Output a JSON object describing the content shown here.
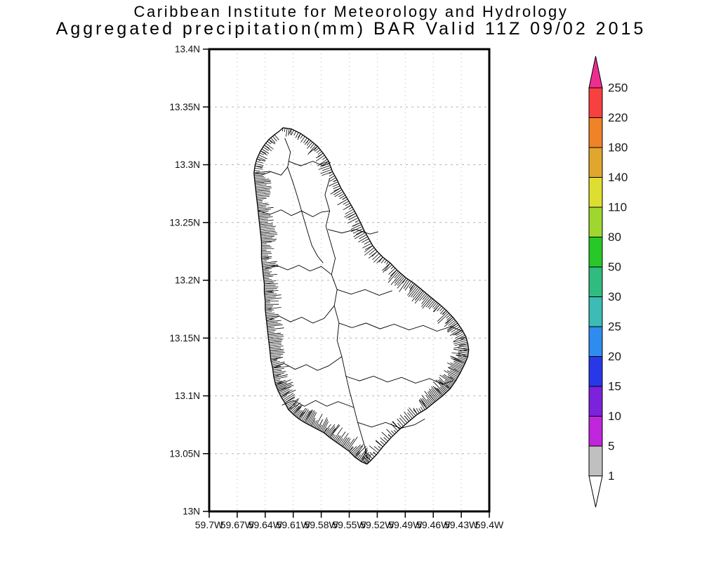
{
  "header": {
    "line1": "Caribbean Institute for Meteorology and Hydrology",
    "line2": "Aggregated precipitation(mm) BAR Valid 11Z 09/02 2015"
  },
  "axes": {
    "lat_range": [
      13.0,
      13.4
    ],
    "lon_range": [
      -59.7,
      -59.4
    ],
    "lat_ticks": [
      {
        "label": "13.4N",
        "lat": 13.4
      },
      {
        "label": "13.35N",
        "lat": 13.35
      },
      {
        "label": "13.3N",
        "lat": 13.3
      },
      {
        "label": "13.25N",
        "lat": 13.25
      },
      {
        "label": "13.2N",
        "lat": 13.2
      },
      {
        "label": "13.15N",
        "lat": 13.15
      },
      {
        "label": "13.1N",
        "lat": 13.1
      },
      {
        "label": "13.05N",
        "lat": 13.05
      },
      {
        "label": "13N",
        "lat": 13.0
      }
    ],
    "lon_ticks": [
      {
        "label": "59.7W",
        "lon": -59.7
      },
      {
        "label": "59.67W",
        "lon": -59.67
      },
      {
        "label": "59.64W",
        "lon": -59.64
      },
      {
        "label": "59.61W",
        "lon": -59.61
      },
      {
        "label": "59.58W",
        "lon": -59.58
      },
      {
        "label": "59.55W",
        "lon": -59.55
      },
      {
        "label": "59.52W",
        "lon": -59.52
      },
      {
        "label": "59.49W",
        "lon": -59.49
      },
      {
        "label": "59.46W",
        "lon": -59.46
      },
      {
        "label": "59.43W",
        "lon": -59.43
      },
      {
        "label": "59.4W",
        "lon": -59.4
      }
    ]
  },
  "colorbar": {
    "unit": "mm",
    "levels": [
      "250",
      "220",
      "180",
      "140",
      "110",
      "80",
      "50",
      "30",
      "25",
      "20",
      "15",
      "10",
      "5",
      "1"
    ],
    "band_colors": [
      "#ee2e8e",
      "#f94040",
      "#f08228",
      "#e0a62e",
      "#dede30",
      "#a0d630",
      "#28c828",
      "#30bc7e",
      "#3cbcb4",
      "#2e8cee",
      "#2838e8",
      "#7c22dc",
      "#c026dc",
      "#c0c0c0",
      "#ffffff"
    ]
  },
  "map": {
    "region": "Barbados",
    "coastline": [
      [
        -59.621,
        13.332
      ],
      [
        -59.612,
        13.331
      ],
      [
        -59.602,
        13.327
      ],
      [
        -59.593,
        13.322
      ],
      [
        -59.584,
        13.316
      ],
      [
        -59.578,
        13.31
      ],
      [
        -59.572,
        13.303
      ],
      [
        -59.568,
        13.294
      ],
      [
        -59.563,
        13.287
      ],
      [
        -59.559,
        13.28
      ],
      [
        -59.553,
        13.272
      ],
      [
        -59.548,
        13.265
      ],
      [
        -59.543,
        13.258
      ],
      [
        -59.538,
        13.25
      ],
      [
        -59.534,
        13.243
      ],
      [
        -59.529,
        13.236
      ],
      [
        -59.525,
        13.23
      ],
      [
        -59.52,
        13.225
      ],
      [
        -59.514,
        13.22
      ],
      [
        -59.506,
        13.215
      ],
      [
        -59.499,
        13.209
      ],
      [
        -59.489,
        13.202
      ],
      [
        -59.48,
        13.197
      ],
      [
        -59.471,
        13.191
      ],
      [
        -59.462,
        13.185
      ],
      [
        -59.453,
        13.179
      ],
      [
        -59.446,
        13.174
      ],
      [
        -59.439,
        13.168
      ],
      [
        -59.434,
        13.163
      ],
      [
        -59.429,
        13.157
      ],
      [
        -59.425,
        13.151
      ],
      [
        -59.423,
        13.145
      ],
      [
        -59.422,
        13.14
      ],
      [
        -59.423,
        13.134
      ],
      [
        -59.426,
        13.128
      ],
      [
        -59.431,
        13.12
      ],
      [
        -59.436,
        13.113
      ],
      [
        -59.442,
        13.106
      ],
      [
        -59.45,
        13.1
      ],
      [
        -59.458,
        13.095
      ],
      [
        -59.467,
        13.089
      ],
      [
        -59.477,
        13.084
      ],
      [
        -59.486,
        13.078
      ],
      [
        -59.496,
        13.071
      ],
      [
        -59.505,
        13.064
      ],
      [
        -59.514,
        13.056
      ],
      [
        -59.521,
        13.049
      ],
      [
        -59.527,
        13.044
      ],
      [
        -59.531,
        13.041
      ],
      [
        -59.537,
        13.043
      ],
      [
        -59.544,
        13.047
      ],
      [
        -59.55,
        13.052
      ],
      [
        -59.557,
        13.056
      ],
      [
        -59.564,
        13.06
      ],
      [
        -59.571,
        13.064
      ],
      [
        -59.577,
        13.068
      ],
      [
        -59.584,
        13.071
      ],
      [
        -59.591,
        13.074
      ],
      [
        -59.598,
        13.077
      ],
      [
        -59.604,
        13.08
      ],
      [
        -59.61,
        13.084
      ],
      [
        -59.615,
        13.088
      ],
      [
        -59.619,
        13.094
      ],
      [
        -59.623,
        13.099
      ],
      [
        -59.626,
        13.104
      ],
      [
        -59.629,
        13.11
      ],
      [
        -59.631,
        13.117
      ],
      [
        -59.632,
        13.124
      ],
      [
        -59.634,
        13.131
      ],
      [
        -59.635,
        13.139
      ],
      [
        -59.636,
        13.146
      ],
      [
        -59.637,
        13.153
      ],
      [
        -59.638,
        13.16
      ],
      [
        -59.639,
        13.168
      ],
      [
        -59.64,
        13.175
      ],
      [
        -59.64,
        13.182
      ],
      [
        -59.641,
        13.19
      ],
      [
        -59.641,
        13.197
      ],
      [
        -59.642,
        13.204
      ],
      [
        -59.643,
        13.212
      ],
      [
        -59.644,
        13.219
      ],
      [
        -59.644,
        13.226
      ],
      [
        -59.644,
        13.233
      ],
      [
        -59.645,
        13.241
      ],
      [
        -59.646,
        13.248
      ],
      [
        -59.647,
        13.255
      ],
      [
        -59.648,
        13.263
      ],
      [
        -59.649,
        13.27
      ],
      [
        -59.65,
        13.277
      ],
      [
        -59.651,
        13.284
      ],
      [
        -59.652,
        13.293
      ],
      [
        -59.651,
        13.299
      ],
      [
        -59.649,
        13.305
      ],
      [
        -59.645,
        13.312
      ],
      [
        -59.641,
        13.317
      ],
      [
        -59.636,
        13.322
      ],
      [
        -59.63,
        13.326
      ],
      [
        -59.625,
        13.329
      ],
      [
        -59.621,
        13.332
      ]
    ],
    "watershed_lines": [
      [
        [
          -59.571,
          13.288
        ],
        [
          -59.576,
          13.274
        ],
        [
          -59.571,
          13.26
        ],
        [
          -59.575,
          13.247
        ],
        [
          -59.57,
          13.233
        ],
        [
          -59.565,
          13.219
        ],
        [
          -59.569,
          13.205
        ],
        [
          -59.563,
          13.192
        ],
        [
          -59.566,
          13.178
        ],
        [
          -59.561,
          13.163
        ],
        [
          -59.563,
          13.148
        ],
        [
          -59.558,
          13.134
        ],
        [
          -59.554,
          13.119
        ],
        [
          -59.55,
          13.105
        ],
        [
          -59.545,
          13.09
        ],
        [
          -59.541,
          13.077
        ],
        [
          -59.537,
          13.066
        ],
        [
          -59.533,
          13.055
        ],
        [
          -59.531,
          13.046
        ]
      ],
      [
        [
          -59.647,
          13.26
        ],
        [
          -59.635,
          13.257
        ],
        [
          -59.623,
          13.261
        ],
        [
          -59.612,
          13.256
        ],
        [
          -59.601,
          13.26
        ],
        [
          -59.589,
          13.255
        ],
        [
          -59.58,
          13.259
        ],
        [
          -59.571,
          13.26
        ]
      ],
      [
        [
          -59.619,
          13.323
        ],
        [
          -59.613,
          13.311
        ],
        [
          -59.616,
          13.298
        ],
        [
          -59.61,
          13.284
        ],
        [
          -59.605,
          13.271
        ],
        [
          -59.6,
          13.257
        ],
        [
          -59.595,
          13.243
        ],
        [
          -59.59,
          13.23
        ],
        [
          -59.584,
          13.221
        ],
        [
          -59.578,
          13.215
        ]
      ],
      [
        [
          -59.64,
          13.21
        ],
        [
          -59.628,
          13.213
        ],
        [
          -59.616,
          13.209
        ],
        [
          -59.604,
          13.213
        ],
        [
          -59.592,
          13.208
        ],
        [
          -59.58,
          13.212
        ],
        [
          -59.569,
          13.205
        ]
      ],
      [
        [
          -59.638,
          13.165
        ],
        [
          -59.625,
          13.169
        ],
        [
          -59.613,
          13.164
        ],
        [
          -59.601,
          13.168
        ],
        [
          -59.589,
          13.163
        ],
        [
          -59.577,
          13.167
        ],
        [
          -59.566,
          13.178
        ]
      ],
      [
        [
          -59.632,
          13.124
        ],
        [
          -59.62,
          13.128
        ],
        [
          -59.608,
          13.123
        ],
        [
          -59.596,
          13.127
        ],
        [
          -59.584,
          13.122
        ],
        [
          -59.572,
          13.126
        ],
        [
          -59.558,
          13.134
        ]
      ],
      [
        [
          -59.622,
          13.092
        ],
        [
          -59.61,
          13.096
        ],
        [
          -59.598,
          13.091
        ],
        [
          -59.586,
          13.096
        ],
        [
          -59.574,
          13.091
        ],
        [
          -59.562,
          13.095
        ],
        [
          -59.545,
          13.09
        ]
      ],
      [
        [
          -59.561,
          13.163
        ],
        [
          -59.547,
          13.159
        ],
        [
          -59.532,
          13.163
        ],
        [
          -59.517,
          13.158
        ],
        [
          -59.502,
          13.162
        ],
        [
          -59.486,
          13.157
        ],
        [
          -59.471,
          13.161
        ],
        [
          -59.456,
          13.156
        ],
        [
          -59.441,
          13.16
        ],
        [
          -59.429,
          13.156
        ]
      ],
      [
        [
          -59.554,
          13.117
        ],
        [
          -59.539,
          13.113
        ],
        [
          -59.524,
          13.117
        ],
        [
          -59.509,
          13.112
        ],
        [
          -59.494,
          13.116
        ],
        [
          -59.479,
          13.111
        ],
        [
          -59.464,
          13.115
        ],
        [
          -59.45,
          13.11
        ],
        [
          -59.439,
          13.113
        ]
      ],
      [
        [
          -59.541,
          13.077
        ],
        [
          -59.526,
          13.073
        ],
        [
          -59.511,
          13.077
        ],
        [
          -59.495,
          13.072
        ],
        [
          -59.48,
          13.075
        ],
        [
          -59.469,
          13.08
        ]
      ],
      [
        [
          -59.563,
          13.192
        ],
        [
          -59.548,
          13.188
        ],
        [
          -59.533,
          13.192
        ],
        [
          -59.518,
          13.187
        ],
        [
          -59.504,
          13.191
        ]
      ],
      [
        [
          -59.573,
          13.244
        ],
        [
          -59.558,
          13.241
        ],
        [
          -59.543,
          13.244
        ],
        [
          -59.528,
          13.24
        ],
        [
          -59.519,
          13.242
        ]
      ],
      [
        [
          -59.615,
          13.303
        ],
        [
          -59.602,
          13.299
        ],
        [
          -59.589,
          13.303
        ],
        [
          -59.578,
          13.299
        ],
        [
          -59.57,
          13.302
        ]
      ],
      [
        [
          -59.644,
          13.291
        ],
        [
          -59.634,
          13.294
        ],
        [
          -59.623,
          13.291
        ],
        [
          -59.616,
          13.298
        ]
      ]
    ]
  }
}
